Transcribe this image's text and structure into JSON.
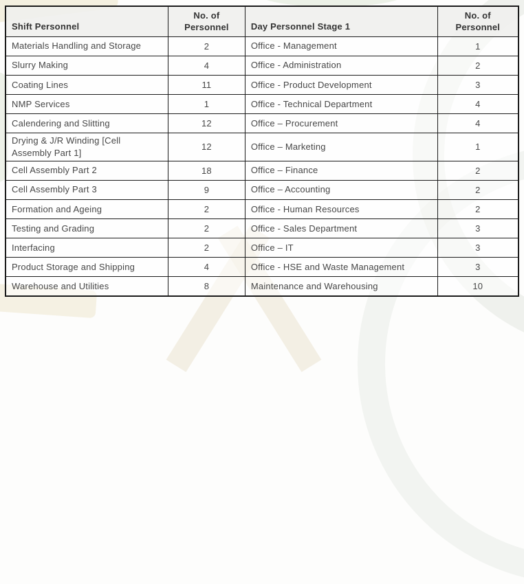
{
  "colors": {
    "border": "#1b1b1b",
    "header_bg": "#f0f0ed",
    "text": "#464646",
    "page_bg": "#fdfdfc"
  },
  "table": {
    "headers": {
      "shift": "Shift Personnel",
      "shift_count": "No. of Personnel",
      "day": "Day Personnel Stage 1",
      "day_count": "No. of Personnel"
    },
    "rows": [
      {
        "shift": "Materials Handling and Storage",
        "shift_count": "2",
        "day": "Office - Management",
        "day_count": "1"
      },
      {
        "shift": "Slurry Making",
        "shift_count": "4",
        "day": "Office - Administration",
        "day_count": "2"
      },
      {
        "shift": "Coating Lines",
        "shift_count": "11",
        "day": "Office - Product Development",
        "day_count": "3"
      },
      {
        "shift": "NMP Services",
        "shift_count": "1",
        "day": "Office - Technical Department",
        "day_count": "4"
      },
      {
        "shift": "Calendering and Slitting",
        "shift_count": "12",
        "day": "Office – Procurement",
        "day_count": "4"
      },
      {
        "shift": "Drying & J/R Winding [Cell Assembly Part 1]",
        "shift_count": "12",
        "day": "Office – Marketing",
        "day_count": "1"
      },
      {
        "shift": "Cell Assembly Part 2",
        "shift_count": "18",
        "day": "Office – Finance",
        "day_count": "2"
      },
      {
        "shift": "Cell Assembly Part 3",
        "shift_count": "9",
        "day": "Office – Accounting",
        "day_count": "2"
      },
      {
        "shift": "Formation and Ageing",
        "shift_count": "2",
        "day": "Office - Human Resources",
        "day_count": "2"
      },
      {
        "shift": "Testing and Grading",
        "shift_count": "2",
        "day": "Office - Sales Department",
        "day_count": "3"
      },
      {
        "shift": "Interfacing",
        "shift_count": "2",
        "day": "Office – IT",
        "day_count": "3"
      },
      {
        "shift": "Product Storage and Shipping",
        "shift_count": "4",
        "day": "Office - HSE and Waste Management",
        "day_count": "3"
      },
      {
        "shift": "Warehouse and Utilities",
        "shift_count": "8",
        "day": "Maintenance and Warehousing",
        "day_count": "10"
      }
    ]
  }
}
